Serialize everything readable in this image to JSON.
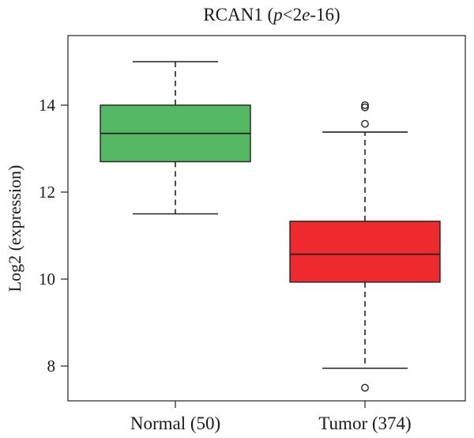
{
  "chart_data": {
    "type": "box",
    "title": "RCAN1",
    "title_stat_italic_1": "p",
    "title_stat_mid": "<2",
    "title_stat_italic_2": "e",
    "title_stat_end": "-16",
    "ylabel": "Log2 (expression)",
    "xlabel": "",
    "ylim": [
      7.2,
      15.6
    ],
    "yticks": [
      8,
      10,
      12,
      14
    ],
    "grid": false,
    "categories": [
      "Normal (50)",
      "Tumor (374)"
    ],
    "series": [
      {
        "category": "Normal (50)",
        "color": "#55b863",
        "min": 11.5,
        "q1": 12.7,
        "median": 13.35,
        "q3": 14.0,
        "max": 15.0,
        "outliers": []
      },
      {
        "category": "Tumor (374)",
        "color": "#ee2a2e",
        "min": 7.95,
        "q1": 9.93,
        "median": 10.57,
        "q3": 11.33,
        "max": 13.38,
        "outliers": [
          13.57,
          13.95,
          14.0,
          7.5
        ]
      }
    ]
  }
}
